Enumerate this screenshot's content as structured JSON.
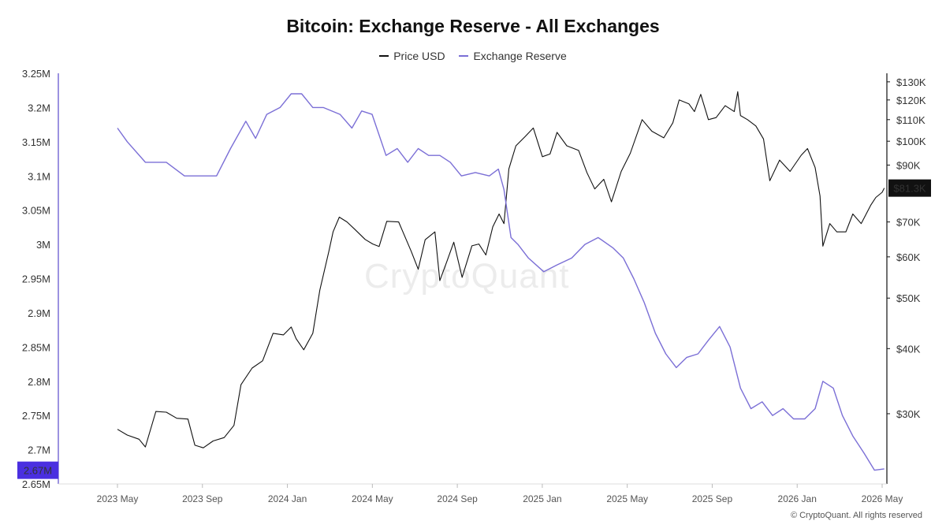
{
  "chart_data": {
    "type": "line",
    "title": "Bitcoin: Exchange Reserve - All Exchanges",
    "legend_position": "top-center",
    "grid": false,
    "x_ticks": [
      "2023 May",
      "2023 Sep",
      "2024 Jan",
      "2024 May",
      "2024 Sep",
      "2025 Jan",
      "2025 May",
      "2025 Sep",
      "2026 Jan",
      "2026 May"
    ],
    "y_left": {
      "range": [
        2.65,
        3.25
      ],
      "ticks": [
        2.65,
        2.7,
        2.75,
        2.8,
        2.85,
        2.9,
        2.95,
        3.0,
        3.05,
        3.1,
        3.15,
        3.2,
        3.25
      ],
      "tick_labels": [
        "2.65M",
        "2.7M",
        "2.75M",
        "2.8M",
        "2.85M",
        "2.9M",
        "2.95M",
        "3M",
        "3.05M",
        "3.1M",
        "3.15M",
        "3.2M",
        "3.25M"
      ],
      "current_label": "2.67M",
      "current_value": 2.67
    },
    "y_right": {
      "scale": "log",
      "range": [
        22000,
        135000
      ],
      "ticks": [
        30000,
        40000,
        50000,
        60000,
        70000,
        90000,
        100000,
        110000,
        120000,
        130000
      ],
      "tick_labels": [
        "$30K",
        "$40K",
        "$50K",
        "$60K",
        "$70K",
        "$90K",
        "$100K",
        "$110K",
        "$120K",
        "$130K"
      ],
      "current_label": "$81.3K",
      "current_value": 81300
    },
    "series": [
      {
        "name": "Price USD",
        "axis": "right",
        "color": "#111111",
        "x": [
          "2023-05-01",
          "2023-05-15",
          "2023-06-01",
          "2023-06-10",
          "2023-06-25",
          "2023-07-10",
          "2023-07-25",
          "2023-08-10",
          "2023-08-20",
          "2023-09-01",
          "2023-09-15",
          "2023-10-01",
          "2023-10-15",
          "2023-10-25",
          "2023-11-10",
          "2023-11-25",
          "2023-12-10",
          "2023-12-25",
          "2024-01-05",
          "2024-01-12",
          "2024-01-23",
          "2024-02-05",
          "2024-02-15",
          "2024-02-28",
          "2024-03-05",
          "2024-03-14",
          "2024-03-25",
          "2024-04-05",
          "2024-04-20",
          "2024-05-01",
          "2024-05-10",
          "2024-05-21",
          "2024-06-07",
          "2024-06-25",
          "2024-07-05",
          "2024-07-15",
          "2024-07-29",
          "2024-08-05",
          "2024-08-15",
          "2024-08-25",
          "2024-09-06",
          "2024-09-20",
          "2024-09-30",
          "2024-10-10",
          "2024-10-20",
          "2024-10-29",
          "2024-11-05",
          "2024-11-12",
          "2024-11-22",
          "2024-12-05",
          "2024-12-17",
          "2024-12-30",
          "2025-01-10",
          "2025-01-20",
          "2025-02-03",
          "2025-02-20",
          "2025-03-04",
          "2025-03-15",
          "2025-03-28",
          "2025-04-08",
          "2025-04-22",
          "2025-05-05",
          "2025-05-22",
          "2025-06-05",
          "2025-06-22",
          "2025-07-05",
          "2025-07-14",
          "2025-07-28",
          "2025-08-05",
          "2025-08-14",
          "2025-08-25",
          "2025-09-05",
          "2025-09-18",
          "2025-10-01",
          "2025-10-06",
          "2025-10-10",
          "2025-10-20",
          "2025-11-01",
          "2025-11-12",
          "2025-11-21",
          "2025-12-05",
          "2025-12-20",
          "2026-01-05",
          "2026-01-14",
          "2026-01-25",
          "2026-02-01",
          "2026-02-05",
          "2026-02-15",
          "2026-02-25",
          "2026-03-10",
          "2026-03-20",
          "2026-04-01",
          "2026-04-15",
          "2026-04-22",
          "2026-05-01",
          "2026-05-04"
        ],
        "y": [
          28000,
          27300,
          26800,
          25900,
          30300,
          30200,
          29400,
          29300,
          26100,
          25800,
          26600,
          27000,
          28500,
          34100,
          36700,
          37900,
          42800,
          42500,
          44000,
          41800,
          39800,
          42800,
          51800,
          61500,
          67000,
          71500,
          70000,
          67800,
          64800,
          63500,
          62800,
          70200,
          70000,
          61500,
          56800,
          64700,
          67000,
          54000,
          58700,
          64000,
          54800,
          63000,
          63500,
          60500,
          68500,
          72500,
          69500,
          88500,
          98000,
          102000,
          106000,
          93400,
          94500,
          104000,
          98000,
          96000,
          87000,
          81000,
          84500,
          76500,
          87500,
          94800,
          110000,
          104500,
          101500,
          108500,
          120000,
          118000,
          114000,
          123000,
          110000,
          111000,
          117000,
          114000,
          124500,
          112000,
          110000,
          107000,
          101000,
          84000,
          92000,
          87500,
          94000,
          96800,
          89000,
          78500,
          62900,
          69500,
          67000,
          67000,
          72500,
          69500,
          75500,
          78000,
          79800,
          81300
        ]
      },
      {
        "name": "Exchange Reserve",
        "axis": "left",
        "color": "#7b6fd6",
        "x": [
          "2023-05-01",
          "2023-05-15",
          "2023-06-10",
          "2023-07-10",
          "2023-08-05",
          "2023-09-01",
          "2023-09-20",
          "2023-10-10",
          "2023-11-01",
          "2023-11-15",
          "2023-12-01",
          "2023-12-20",
          "2024-01-05",
          "2024-01-20",
          "2024-02-05",
          "2024-02-20",
          "2024-03-15",
          "2024-04-01",
          "2024-04-15",
          "2024-04-30",
          "2024-05-20",
          "2024-06-05",
          "2024-06-20",
          "2024-07-05",
          "2024-07-20",
          "2024-08-05",
          "2024-08-20",
          "2024-09-05",
          "2024-09-25",
          "2024-10-15",
          "2024-10-28",
          "2024-11-05",
          "2024-11-15",
          "2024-11-25",
          "2024-12-10",
          "2025-01-01",
          "2025-01-20",
          "2025-02-10",
          "2025-03-01",
          "2025-03-20",
          "2025-04-10",
          "2025-04-25",
          "2025-05-10",
          "2025-05-25",
          "2025-06-10",
          "2025-06-25",
          "2025-07-10",
          "2025-07-25",
          "2025-08-10",
          "2025-08-25",
          "2025-09-10",
          "2025-09-25",
          "2025-10-10",
          "2025-10-25",
          "2025-11-10",
          "2025-11-25",
          "2025-12-10",
          "2025-12-25",
          "2026-01-10",
          "2026-01-25",
          "2026-02-05",
          "2026-02-20",
          "2026-03-05",
          "2026-03-20",
          "2026-04-05",
          "2026-04-20",
          "2026-05-04"
        ],
        "y": [
          3.17,
          3.15,
          3.12,
          3.12,
          3.1,
          3.1,
          3.1,
          3.14,
          3.18,
          3.155,
          3.19,
          3.2,
          3.22,
          3.22,
          3.2,
          3.2,
          3.19,
          3.17,
          3.195,
          3.19,
          3.13,
          3.14,
          3.12,
          3.14,
          3.13,
          3.13,
          3.12,
          3.1,
          3.105,
          3.1,
          3.11,
          3.08,
          3.01,
          3.0,
          2.98,
          2.96,
          2.97,
          2.98,
          3.0,
          3.01,
          2.995,
          2.98,
          2.95,
          2.915,
          2.87,
          2.84,
          2.82,
          2.835,
          2.84,
          2.86,
          2.88,
          2.85,
          2.79,
          2.76,
          2.77,
          2.75,
          2.76,
          2.745,
          2.745,
          2.76,
          2.8,
          2.79,
          2.75,
          2.72,
          2.695,
          2.67,
          2.672
        ]
      }
    ]
  },
  "footer": {
    "copyright": "© CryptoQuant. All rights reserved",
    "watermark": "CryptoQuant"
  }
}
